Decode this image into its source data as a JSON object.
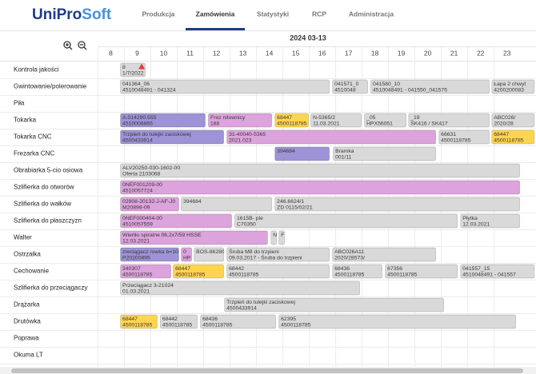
{
  "header": {
    "logo": {
      "primary": "UniPro",
      "secondary": "Soft"
    },
    "nav": [
      "Produkcja",
      "Zamówienia",
      "Statystyki",
      "RCP",
      "Administracja"
    ],
    "active": 1
  },
  "schedule": {
    "date": "2024 03-13",
    "hours": [
      8,
      9,
      10,
      11,
      12,
      13,
      14,
      15,
      16,
      17,
      18,
      19,
      20,
      21,
      22,
      23
    ],
    "xlim": [
      8,
      24.6
    ],
    "rows": [
      {
        "label": "Kontrola jakości",
        "tasks": [
          {
            "start": 8.85,
            "end": 9.82,
            "color": "#d9d9d9",
            "lines": [
              "8",
              "1/7/2022"
            ],
            "warning": true
          }
        ]
      },
      {
        "label": "Gwintowanie/polerowanie",
        "tasks": [
          {
            "start": 8.85,
            "end": 16.79,
            "color": "#d9d9d9",
            "lines": [
              "041364_06",
              "4510048491 - 041324"
            ]
          },
          {
            "start": 16.88,
            "end": 18.24,
            "color": "#d9d9d9",
            "lines": [
              "041571_0",
              "4510048"
            ]
          },
          {
            "start": 18.33,
            "end": 22.85,
            "color": "#d9d9d9",
            "lines": [
              "041580_10",
              "4510048491 - 041550_041575"
            ]
          },
          {
            "start": 22.91,
            "end": 24.55,
            "color": "#d9d9d9",
            "lines": [
              "Łapa 2 chwyt",
              "4200200083"
            ]
          }
        ]
      },
      {
        "label": "Piła",
        "tasks": []
      },
      {
        "label": "Tokarka",
        "tasks": [
          {
            "start": 8.85,
            "end": 12.09,
            "color": "#9d93d6",
            "lines": [
              "A.014290.555",
              "4510008865"
            ]
          },
          {
            "start": 12.18,
            "end": 14.61,
            "color": "#dca3dc",
            "lines": [
              "Frez nitownicy",
              "188"
            ]
          },
          {
            "start": 14.7,
            "end": 16.0,
            "color": "#ffd54f",
            "lines": [
              "68447",
              "4500118785"
            ]
          },
          {
            "start": 16.06,
            "end": 18.0,
            "color": "#d9d9d9",
            "lines": [
              "N-5365/2",
              "11.03.2021"
            ]
          },
          {
            "start": 18.09,
            "end": 19.7,
            "color": "#d9d9d9",
            "lines": [
              "_05",
              "HPX56051"
            ]
          },
          {
            "start": 19.76,
            "end": 22.85,
            "color": "#d9d9d9",
            "lines": [
              "_19",
              "SK416 / SK417"
            ]
          },
          {
            "start": 22.91,
            "end": 24.55,
            "color": "#d9d9d9",
            "lines": [
              "ABC026/",
              "2020/28"
            ]
          }
        ]
      },
      {
        "label": "Tokarka CNC",
        "tasks": [
          {
            "start": 8.85,
            "end": 12.79,
            "color": "#9d93d6",
            "lines": [
              "Trzpień do tulejki zaciskowej",
              "4500433914"
            ]
          },
          {
            "start": 12.88,
            "end": 20.82,
            "color": "#dca3dc",
            "lines": [
              "31-40040-5365",
              "2021.023"
            ]
          },
          {
            "start": 20.91,
            "end": 22.85,
            "color": "#d9d9d9",
            "lines": [
              "66631",
              "4500118785"
            ]
          },
          {
            "start": 22.91,
            "end": 24.55,
            "color": "#ffd54f",
            "lines": [
              "68447",
              "4500118785"
            ]
          }
        ]
      },
      {
        "label": "Frezarka CNC",
        "tasks": [
          {
            "start": 14.7,
            "end": 16.79,
            "color": "#9d93d6",
            "lines": [
              "394684"
            ]
          },
          {
            "start": 16.91,
            "end": 20.82,
            "color": "#d9d9d9",
            "lines": [
              "Bramka",
              "001/11"
            ]
          }
        ]
      },
      {
        "label": "Obrabiarka 5-cio osiowa",
        "tasks": [
          {
            "start": 8.85,
            "end": 24.0,
            "color": "#d9d9d9",
            "lines": [
              "ALV20250-030-1602-00",
              "Oferta 2103068"
            ]
          }
        ]
      },
      {
        "label": "Szlifierka do otworów",
        "tasks": [
          {
            "start": 8.85,
            "end": 24.0,
            "color": "#dca3dc",
            "lines": [
              "0NEF001209-00",
              "4510057724"
            ]
          }
        ]
      },
      {
        "label": "Szlifierka do wałków",
        "tasks": [
          {
            "start": 8.85,
            "end": 11.09,
            "color": "#dca3dc",
            "lines": [
              "02908-20132-J-AF-J0",
              "M20898-09"
            ]
          },
          {
            "start": 11.15,
            "end": 14.61,
            "color": "#d9d9d9",
            "lines": [
              "394684"
            ]
          },
          {
            "start": 14.7,
            "end": 24.0,
            "color": "#d9d9d9",
            "lines": [
              "246.6624/1",
              "ZD 0115/02/21"
            ]
          }
        ]
      },
      {
        "label": "Szlifierka do płaszczyzn",
        "tasks": [
          {
            "start": 8.85,
            "end": 13.09,
            "color": "#dca3dc",
            "lines": [
              "0NEF000404-00",
              "4510057559"
            ]
          },
          {
            "start": 13.18,
            "end": 21.64,
            "color": "#d9d9d9",
            "lines": [
              "1615B- ple",
              "C70350"
            ]
          },
          {
            "start": 21.73,
            "end": 24.0,
            "color": "#d9d9d9",
            "lines": [
              "Płytka",
              "12.03.2021"
            ]
          }
        ]
      },
      {
        "label": "Walter",
        "tasks": [
          {
            "start": 8.85,
            "end": 14.45,
            "color": "#dca3dc",
            "lines": [
              "Wiertło spiralne fi6,2x7/59 HSSE",
              "12.03.2021"
            ]
          },
          {
            "start": 14.55,
            "end": 14.79,
            "color": "#d9d9d9",
            "lines": [
              "N"
            ]
          },
          {
            "start": 14.85,
            "end": 15.09,
            "color": "#d9d9d9",
            "lines": [
              "F"
            ]
          }
        ]
      },
      {
        "label": "Ostrzałka",
        "tasks": [
          {
            "start": 8.85,
            "end": 11.09,
            "color": "#9d93d6",
            "lines": [
              "zreciągacz rowka b=10",
              "P20200895"
            ]
          },
          {
            "start": 11.15,
            "end": 11.58,
            "color": "#dca3dc",
            "lines": [
              "0",
              "HP"
            ]
          },
          {
            "start": 11.64,
            "end": 12.79,
            "color": "#d9d9d9",
            "lines": [
              "BOS-86280"
            ]
          },
          {
            "start": 12.88,
            "end": 16.79,
            "color": "#d9d9d9",
            "lines": [
              "Śruba M8 do trzpieni",
              "09.03.2017 - Śruba do trzpieni"
            ]
          },
          {
            "start": 16.88,
            "end": 20.82,
            "color": "#d9d9d9",
            "lines": [
              "ABC026A11",
              "2020/28573/"
            ]
          }
        ]
      },
      {
        "label": "Cechowanie",
        "tasks": [
          {
            "start": 8.85,
            "end": 10.79,
            "color": "#dca3dc",
            "lines": [
              "340307",
              "4500118785"
            ]
          },
          {
            "start": 10.85,
            "end": 12.79,
            "color": "#ffd54f",
            "lines": [
              "68447",
              "4500118785"
            ]
          },
          {
            "start": 12.88,
            "end": 16.79,
            "color": "#d9d9d9",
            "lines": [
              "68442",
              "4500118785"
            ]
          },
          {
            "start": 16.88,
            "end": 18.79,
            "color": "#d9d9d9",
            "lines": [
              "68436",
              "4500118785"
            ]
          },
          {
            "start": 18.88,
            "end": 21.64,
            "color": "#d9d9d9",
            "lines": [
              "67356",
              "4500118785"
            ]
          },
          {
            "start": 21.73,
            "end": 24.55,
            "color": "#d9d9d9",
            "lines": [
              "041557_15",
              "4510048491 - 041557"
            ]
          }
        ]
      },
      {
        "label": "Szlifierka do przeciągaczy",
        "tasks": [
          {
            "start": 8.85,
            "end": 17.94,
            "color": "#d9d9d9",
            "lines": [
              "Przeciągacz 3-21024",
              "01.03.2021"
            ]
          }
        ]
      },
      {
        "label": "Drążarka",
        "tasks": [
          {
            "start": 12.79,
            "end": 21.12,
            "color": "#d9d9d9",
            "lines": [
              "Trzpień do tulejki zaciskowej",
              "4500433914"
            ]
          }
        ]
      },
      {
        "label": "Drutówka",
        "tasks": [
          {
            "start": 8.85,
            "end": 10.27,
            "color": "#ffd54f",
            "lines": [
              "68447",
              "4500118785"
            ]
          },
          {
            "start": 10.36,
            "end": 11.79,
            "color": "#d9d9d9",
            "lines": [
              "68442",
              "4500118785"
            ]
          },
          {
            "start": 11.88,
            "end": 14.76,
            "color": "#d9d9d9",
            "lines": [
              "68436",
              "4500118785"
            ]
          },
          {
            "start": 14.85,
            "end": 23.85,
            "color": "#d9d9d9",
            "lines": [
              "62395",
              "4500118785"
            ]
          }
        ]
      },
      {
        "label": "Poprawa",
        "tasks": []
      },
      {
        "label": "Okuma LT",
        "tasks": []
      }
    ]
  }
}
